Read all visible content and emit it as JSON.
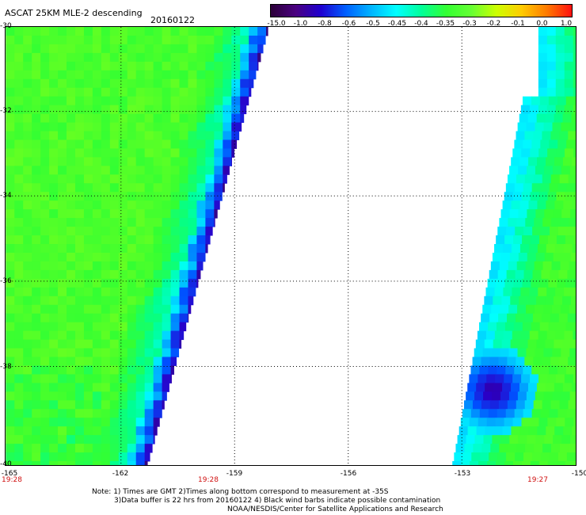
{
  "header": {
    "title": "ASCAT 25KM MLE-2 descending",
    "date": "20160122"
  },
  "colorbar": {
    "labels": [
      "-15.0",
      "-1.0",
      "-0.8",
      "-0.6",
      "-0.5",
      "-0.45",
      "-0.4",
      "-0.35",
      "-0.3",
      "-0.2",
      "-0.1",
      "0.0",
      "1.0"
    ],
    "colors": [
      "#2b0038",
      "#4a0080",
      "#1e00d0",
      "#0060ff",
      "#00b4ff",
      "#00ffff",
      "#00ff99",
      "#33ff33",
      "#66ff33",
      "#ccff00",
      "#ffcc00",
      "#ff7a00",
      "#ff1010"
    ]
  },
  "map": {
    "lat_labels": [
      "-30",
      "-32",
      "-34",
      "-36",
      "-38",
      "-40"
    ],
    "lon_labels": [
      "-165",
      "-162",
      "-159",
      "-156",
      "-153",
      "-150"
    ],
    "lat_range": [
      -30,
      -40
    ],
    "lon_range": [
      -165,
      -150
    ],
    "grid": "dotted",
    "times": [
      "19:28",
      "19:28",
      "19:27"
    ]
  },
  "notes": {
    "line1": "Note: 1) Times are GMT 2)Times along bottom correspond to measurement at -35S",
    "line2": "3)Data buffer is 22 hrs from 20160122 4) Black wind barbs indicate possible contamination",
    "line3": "NOAA/NESDIS/Center for Satellite Applications and Research"
  }
}
